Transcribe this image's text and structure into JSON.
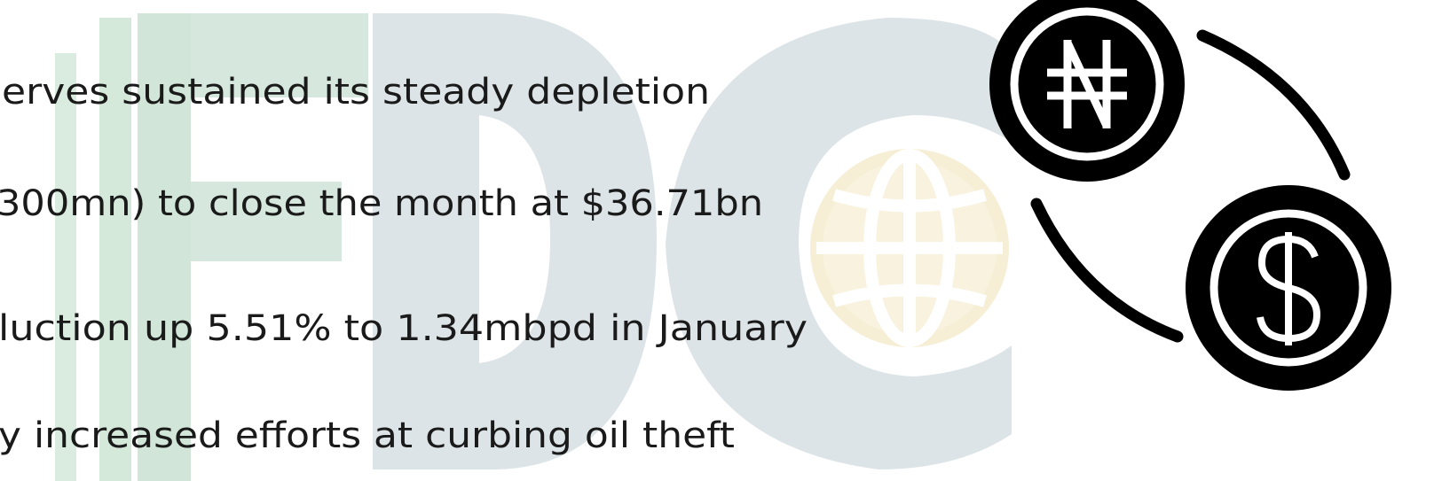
{
  "lines": [
    "erves sustained its steady depletion",
    "300mn) to close the month at $36.71bn",
    "luction up 5.51% to 1.34mbpd in January",
    "y increased efforts at curbing oil theft"
  ]
}
